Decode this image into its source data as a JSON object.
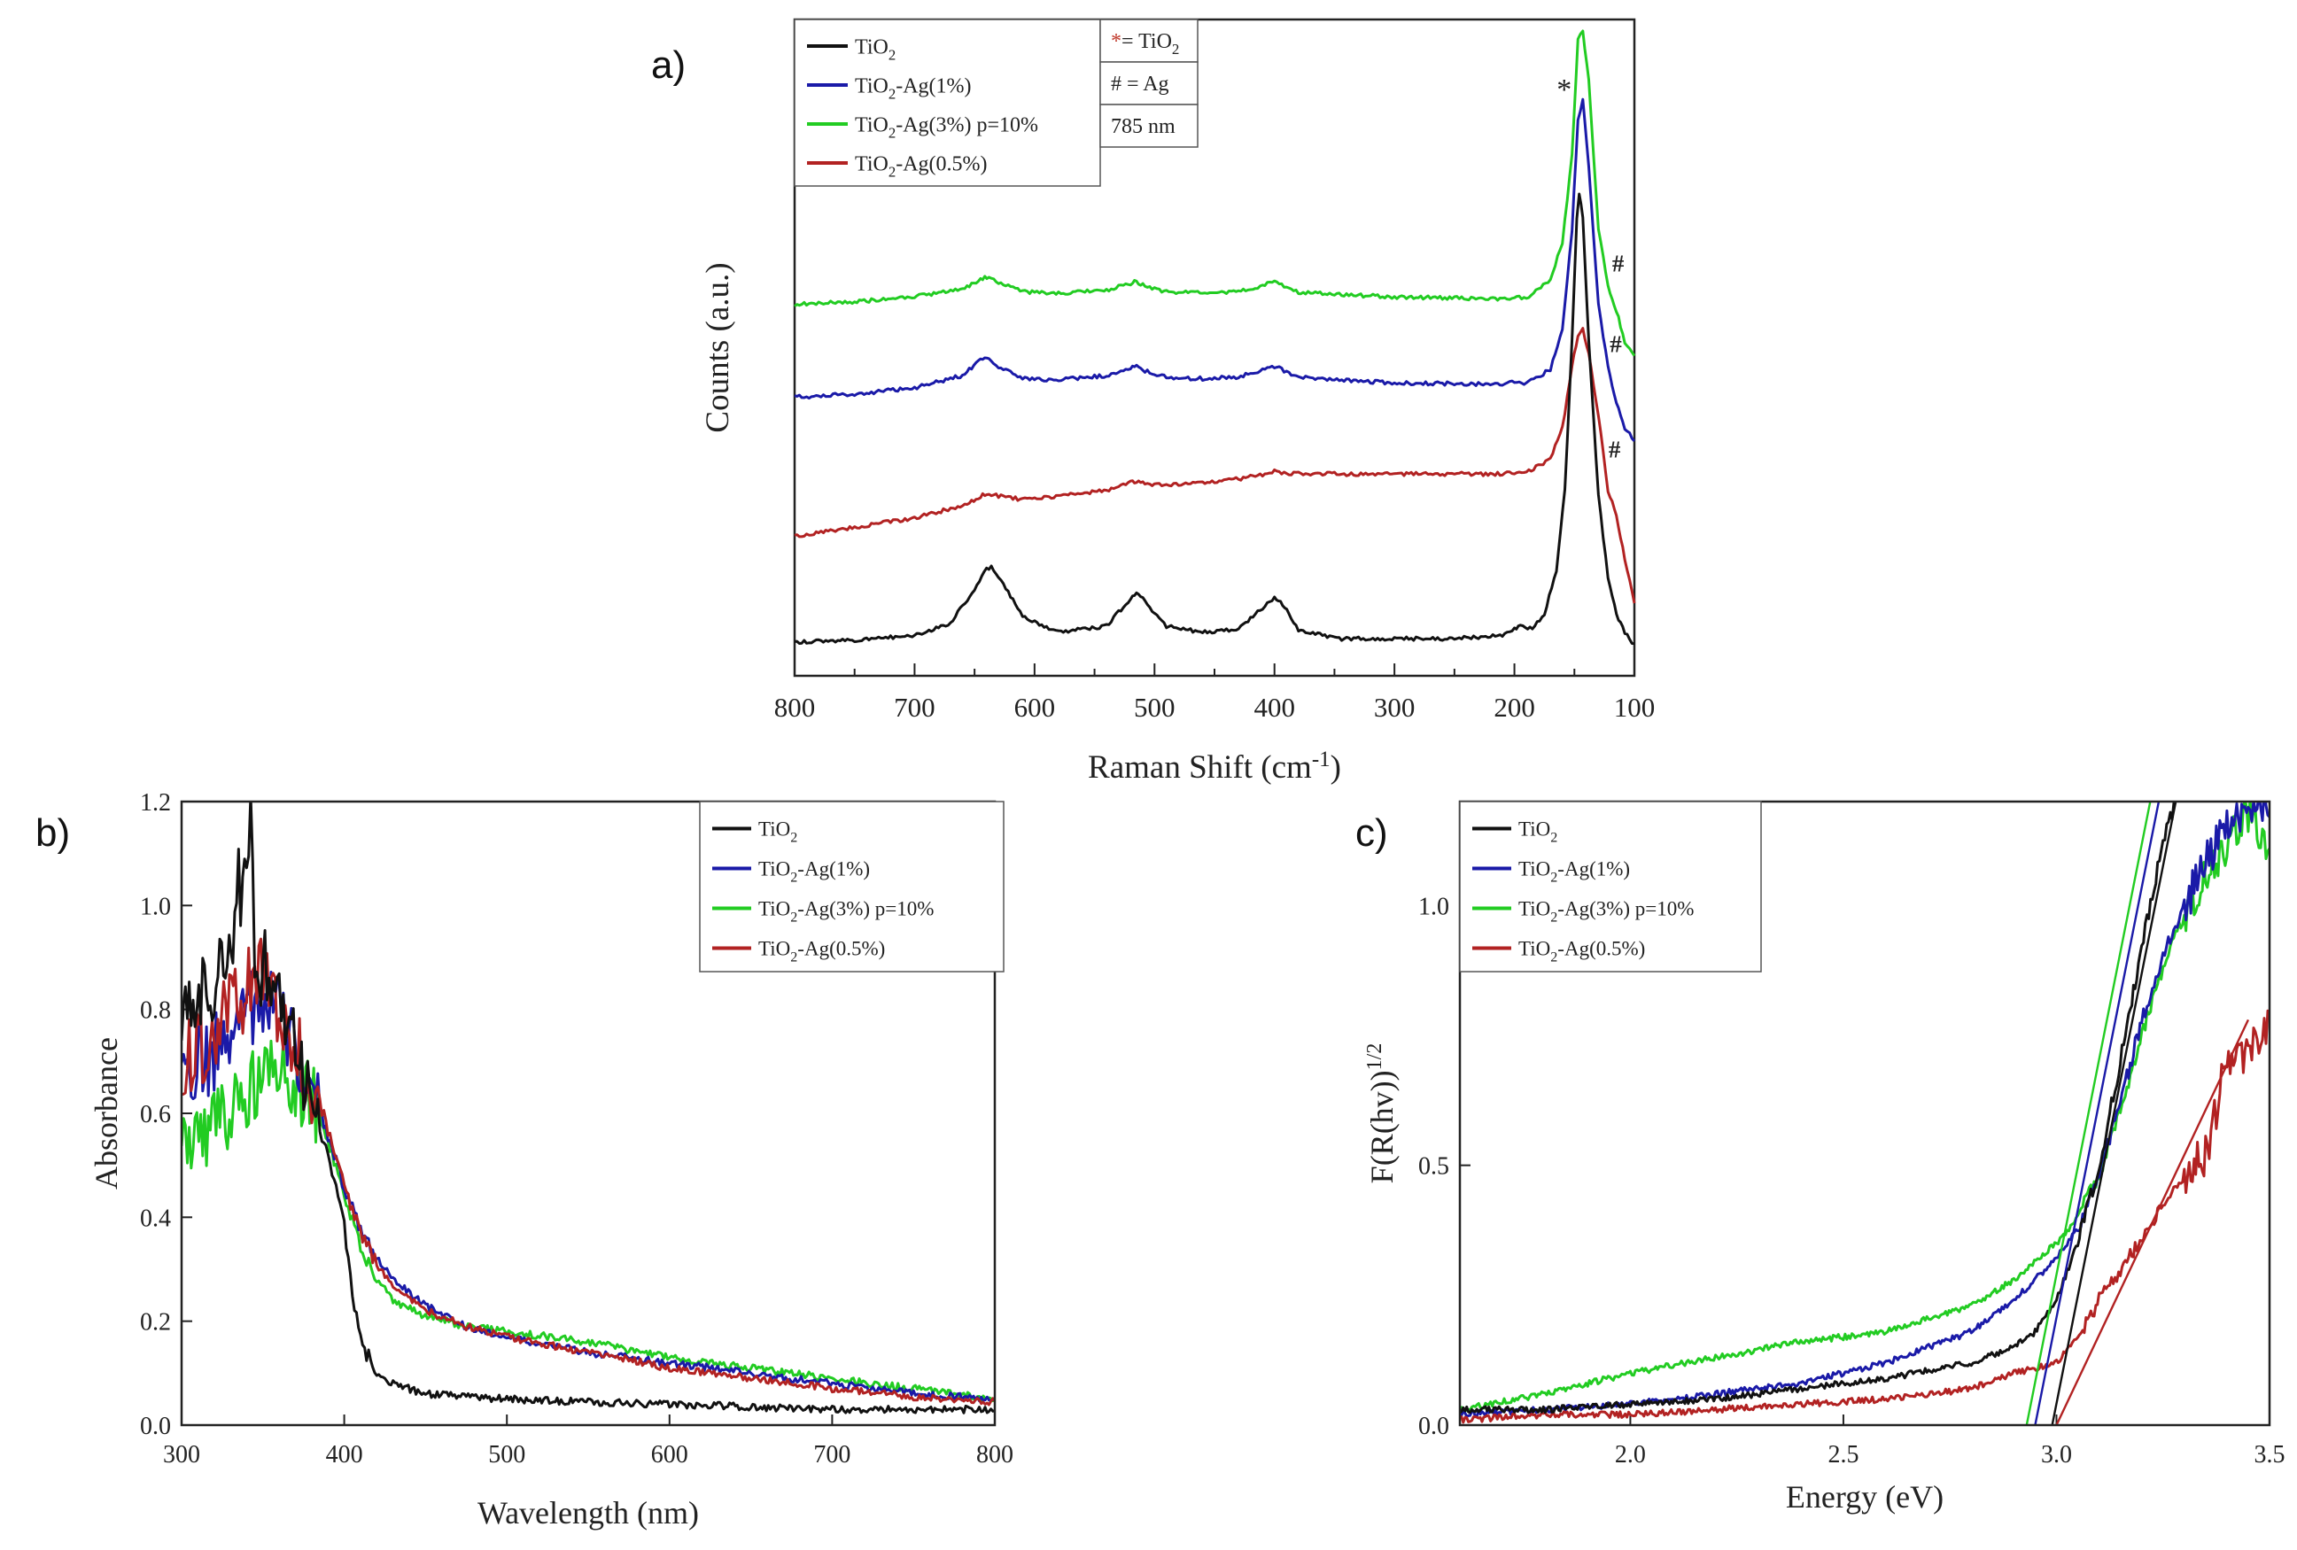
{
  "chart_data": [
    {
      "id": "a",
      "panel_label": "a)",
      "type": "line",
      "xlabel": "Raman Shift (cm",
      "xlabel_sup": "-1",
      "xlabel_close": ")",
      "ylabel": "Counts (a.u.)",
      "xlim": [
        800,
        100
      ],
      "x_ticks": [
        "800",
        "700",
        "600",
        "500",
        "400",
        "300",
        "200",
        "100"
      ],
      "legend": [
        {
          "base": "TiO",
          "sub": "2",
          "rest": "",
          "color": "#111111"
        },
        {
          "base": "TiO",
          "sub": "2",
          "rest": "-Ag(1%)",
          "color": "#1a1aa8"
        },
        {
          "base": "TiO",
          "sub": "2",
          "rest": "-Ag(3%) p=10%",
          "color": "#22cc22"
        },
        {
          "base": "TiO",
          "sub": "2",
          "rest": "-Ag(0.5%)",
          "color": "#b22222"
        }
      ],
      "annotation_box": [
        {
          "symbol": "*",
          "text": "= TiO",
          "sub": "2"
        },
        {
          "symbol": "#",
          "text": " = Ag",
          "sub": ""
        },
        {
          "symbol": "",
          "text": "785 nm",
          "sub": ""
        }
      ],
      "markers": [
        {
          "symbol": "*",
          "x": 160,
          "series": "TiO2-Ag(3%) p=10%"
        },
        {
          "symbol": "#",
          "x": 115,
          "series": "TiO2-Ag(3%) p=10%"
        },
        {
          "symbol": "#",
          "x": 117,
          "series": "TiO2-Ag(1%)"
        },
        {
          "symbol": "#",
          "x": 118,
          "series": "TiO2-Ag(0.5%)"
        }
      ],
      "series": [
        {
          "name": "TiO2-Ag(3%) p=10%",
          "color": "#22cc22",
          "x": [
            800,
            750,
            700,
            660,
            645,
            638,
            630,
            610,
            580,
            540,
            520,
            515,
            508,
            490,
            460,
            430,
            410,
            400,
            392,
            380,
            350,
            300,
            250,
            210,
            200,
            190,
            170,
            160,
            152,
            147,
            143,
            138,
            130,
            122,
            115,
            108,
            100
          ],
          "y": [
            5.6,
            5.64,
            5.72,
            5.85,
            6.0,
            6.05,
            5.95,
            5.8,
            5.78,
            5.82,
            5.94,
            5.97,
            5.9,
            5.8,
            5.78,
            5.8,
            5.9,
            5.97,
            5.9,
            5.8,
            5.76,
            5.72,
            5.7,
            5.68,
            5.72,
            5.7,
            6.0,
            6.6,
            8.0,
            9.9,
            10.0,
            9.2,
            6.8,
            5.9,
            5.5,
            5.0,
            4.8
          ]
        },
        {
          "name": "TiO2-Ag(1%)",
          "color": "#1a1aa8",
          "x": [
            800,
            750,
            700,
            660,
            645,
            638,
            630,
            610,
            580,
            540,
            520,
            515,
            508,
            490,
            460,
            430,
            410,
            400,
            392,
            380,
            350,
            300,
            250,
            210,
            200,
            190,
            170,
            160,
            152,
            147,
            143,
            138,
            130,
            122,
            115,
            108,
            100
          ],
          "y": [
            4.1,
            4.15,
            4.25,
            4.45,
            4.7,
            4.72,
            4.6,
            4.4,
            4.38,
            4.45,
            4.58,
            4.6,
            4.52,
            4.42,
            4.4,
            4.42,
            4.55,
            4.6,
            4.53,
            4.42,
            4.38,
            4.33,
            4.32,
            4.3,
            4.36,
            4.32,
            4.55,
            5.2,
            6.8,
            8.6,
            8.9,
            7.8,
            5.6,
            4.6,
            4.0,
            3.6,
            3.4
          ]
        },
        {
          "name": "TiO2-Ag(0.5%)",
          "color": "#b22222",
          "x": [
            800,
            750,
            700,
            660,
            645,
            638,
            630,
            610,
            580,
            540,
            520,
            515,
            508,
            490,
            460,
            430,
            410,
            400,
            392,
            380,
            350,
            300,
            250,
            210,
            200,
            190,
            170,
            160,
            152,
            147,
            143,
            138,
            130,
            122,
            115,
            108,
            100
          ],
          "y": [
            1.85,
            2.0,
            2.15,
            2.35,
            2.5,
            2.55,
            2.5,
            2.45,
            2.5,
            2.6,
            2.72,
            2.75,
            2.7,
            2.68,
            2.72,
            2.78,
            2.85,
            2.9,
            2.88,
            2.86,
            2.86,
            2.86,
            2.86,
            2.86,
            2.88,
            2.88,
            3.1,
            3.6,
            4.6,
            5.1,
            5.2,
            4.8,
            3.8,
            2.6,
            2.2,
            1.5,
            0.8
          ]
        },
        {
          "name": "TiO2",
          "color": "#111111",
          "x": [
            800,
            750,
            700,
            670,
            650,
            642,
            636,
            628,
            610,
            580,
            540,
            520,
            515,
            508,
            490,
            460,
            430,
            410,
            400,
            395,
            388,
            380,
            350,
            300,
            250,
            210,
            200,
            195,
            185,
            175,
            165,
            158,
            152,
            148,
            146,
            143,
            138,
            130,
            122,
            115,
            108,
            100
          ],
          "y": [
            0.15,
            0.17,
            0.25,
            0.45,
            1.0,
            1.3,
            1.35,
            1.15,
            0.55,
            0.3,
            0.4,
            0.85,
            0.95,
            0.8,
            0.4,
            0.3,
            0.35,
            0.7,
            0.85,
            0.8,
            0.6,
            0.35,
            0.2,
            0.2,
            0.2,
            0.25,
            0.35,
            0.4,
            0.35,
            0.6,
            1.3,
            2.6,
            5.0,
            7.0,
            7.4,
            7.0,
            5.0,
            2.5,
            1.2,
            0.6,
            0.3,
            0.1
          ]
        }
      ]
    },
    {
      "id": "b",
      "panel_label": "b)",
      "type": "line",
      "xlabel": "Wavelength (nm)",
      "ylabel": "Absorbance",
      "xlim": [
        300,
        800
      ],
      "ylim": [
        0.0,
        1.2
      ],
      "x_ticks": [
        "300",
        "400",
        "500",
        "600",
        "700",
        "800"
      ],
      "y_ticks": [
        "0.0",
        "0.2",
        "0.4",
        "0.6",
        "0.8",
        "1.0",
        "1.2"
      ],
      "legend": [
        {
          "base": "TiO",
          "sub": "2",
          "rest": "",
          "color": "#111111"
        },
        {
          "base": "TiO",
          "sub": "2",
          "rest": "-Ag(1%)",
          "color": "#1a1aa8"
        },
        {
          "base": "TiO",
          "sub": "2",
          "rest": "-Ag(3%) p=10%",
          "color": "#22cc22"
        },
        {
          "base": "TiO",
          "sub": "2",
          "rest": "-Ag(0.5%)",
          "color": "#b22222"
        }
      ],
      "series": [
        {
          "name": "TiO2",
          "color": "#111111",
          "x": [
            300,
            320,
            335,
            340,
            345,
            350,
            360,
            370,
            380,
            390,
            400,
            405,
            410,
            420,
            430,
            450,
            500,
            550,
            600,
            650,
            700,
            750,
            800
          ],
          "y": [
            0.82,
            0.86,
            0.95,
            1.15,
            0.98,
            0.9,
            0.82,
            0.72,
            0.62,
            0.52,
            0.38,
            0.25,
            0.16,
            0.1,
            0.08,
            0.06,
            0.05,
            0.045,
            0.04,
            0.035,
            0.03,
            0.03,
            0.03
          ]
        },
        {
          "name": "TiO2-Ag(1%)",
          "color": "#1a1aa8",
          "x": [
            300,
            320,
            340,
            350,
            360,
            370,
            380,
            390,
            400,
            410,
            420,
            430,
            450,
            475,
            500,
            550,
            600,
            650,
            700,
            750,
            800
          ],
          "y": [
            0.68,
            0.72,
            0.8,
            0.82,
            0.78,
            0.72,
            0.64,
            0.56,
            0.46,
            0.38,
            0.32,
            0.28,
            0.23,
            0.19,
            0.17,
            0.14,
            0.12,
            0.1,
            0.08,
            0.06,
            0.05
          ]
        },
        {
          "name": "TiO2-Ag(3%) p=10%",
          "color": "#22cc22",
          "x": [
            300,
            320,
            340,
            350,
            360,
            370,
            380,
            390,
            400,
            410,
            420,
            430,
            450,
            475,
            500,
            550,
            600,
            650,
            700,
            750,
            800
          ],
          "y": [
            0.58,
            0.56,
            0.64,
            0.66,
            0.68,
            0.66,
            0.62,
            0.55,
            0.44,
            0.34,
            0.28,
            0.24,
            0.21,
            0.19,
            0.18,
            0.16,
            0.13,
            0.11,
            0.09,
            0.07,
            0.05
          ]
        },
        {
          "name": "TiO2-Ag(0.5%)",
          "color": "#b22222",
          "x": [
            300,
            320,
            340,
            350,
            360,
            370,
            380,
            390,
            400,
            410,
            420,
            430,
            450,
            475,
            500,
            550,
            600,
            650,
            700,
            750,
            800
          ],
          "y": [
            0.7,
            0.76,
            0.84,
            0.86,
            0.8,
            0.74,
            0.66,
            0.57,
            0.46,
            0.37,
            0.31,
            0.27,
            0.22,
            0.19,
            0.17,
            0.14,
            0.11,
            0.09,
            0.07,
            0.055,
            0.045
          ]
        }
      ]
    },
    {
      "id": "c",
      "panel_label": "c)",
      "type": "line",
      "xlabel": "Energy (eV)",
      "ylabel": "F(R(hv))",
      "ylabel_sup": "1/2",
      "xlim": [
        1.6,
        3.5
      ],
      "ylim": [
        0.0,
        1.2
      ],
      "x_ticks": [
        "2.0",
        "2.5",
        "3.0",
        "3.5"
      ],
      "x_tick_values": [
        2.0,
        2.5,
        3.0,
        3.5
      ],
      "y_ticks": [
        "0.0",
        "0.5",
        "1.0"
      ],
      "y_tick_values": [
        0.0,
        0.5,
        1.0
      ],
      "legend": [
        {
          "base": "TiO",
          "sub": "2",
          "rest": "",
          "color": "#111111"
        },
        {
          "base": "TiO",
          "sub": "2",
          "rest": "-Ag(1%)",
          "color": "#1a1aa8"
        },
        {
          "base": "TiO",
          "sub": "2",
          "rest": "-Ag(3%) p=10%",
          "color": "#22cc22"
        },
        {
          "base": "TiO",
          "sub": "2",
          "rest": "-Ag(0.5%)",
          "color": "#b22222"
        }
      ],
      "series": [
        {
          "name": "TiO2",
          "color": "#111111",
          "x": [
            1.6,
            1.8,
            2.0,
            2.2,
            2.4,
            2.6,
            2.8,
            2.9,
            2.95,
            3.0,
            3.05,
            3.1,
            3.15,
            3.2,
            3.25,
            3.28
          ],
          "y": [
            0.03,
            0.03,
            0.04,
            0.05,
            0.07,
            0.09,
            0.12,
            0.15,
            0.18,
            0.24,
            0.35,
            0.5,
            0.7,
            0.92,
            1.12,
            1.2
          ]
        },
        {
          "name": "TiO2-Ag(1%)",
          "color": "#1a1aa8",
          "x": [
            1.6,
            1.8,
            2.0,
            2.2,
            2.4,
            2.6,
            2.8,
            2.9,
            3.0,
            3.05,
            3.1,
            3.15,
            3.2,
            3.25,
            3.3,
            3.35,
            3.4,
            3.45,
            3.5
          ],
          "y": [
            0.02,
            0.03,
            0.04,
            0.06,
            0.08,
            0.12,
            0.18,
            0.24,
            0.32,
            0.38,
            0.48,
            0.62,
            0.78,
            0.9,
            1.0,
            1.08,
            1.15,
            1.2,
            1.2
          ]
        },
        {
          "name": "TiO2-Ag(3%) p=10%",
          "color": "#22cc22",
          "x": [
            1.6,
            1.8,
            2.0,
            2.2,
            2.4,
            2.6,
            2.8,
            2.9,
            3.0,
            3.05,
            3.1,
            3.15,
            3.2,
            3.25,
            3.3,
            3.35,
            3.4,
            3.45,
            3.5
          ],
          "y": [
            0.03,
            0.06,
            0.1,
            0.13,
            0.16,
            0.18,
            0.23,
            0.28,
            0.35,
            0.4,
            0.48,
            0.6,
            0.75,
            0.88,
            0.98,
            1.05,
            1.12,
            1.18,
            1.1
          ]
        },
        {
          "name": "TiO2-Ag(0.5%)",
          "color": "#b22222",
          "x": [
            1.6,
            1.8,
            2.0,
            2.2,
            2.4,
            2.6,
            2.8,
            2.9,
            3.0,
            3.05,
            3.1,
            3.15,
            3.2,
            3.25,
            3.3,
            3.35,
            3.4,
            3.45,
            3.5
          ],
          "y": [
            0.01,
            0.02,
            0.02,
            0.03,
            0.04,
            0.05,
            0.07,
            0.1,
            0.12,
            0.17,
            0.24,
            0.3,
            0.36,
            0.42,
            0.48,
            0.52,
            0.7,
            0.72,
            0.78
          ]
        }
      ],
      "fit_lines": [
        {
          "color": "#111111",
          "x": [
            2.99,
            3.28
          ],
          "y": [
            0.0,
            1.2
          ]
        },
        {
          "color": "#1a1aa8",
          "x": [
            2.95,
            3.24
          ],
          "y": [
            0.0,
            1.2
          ]
        },
        {
          "color": "#22cc22",
          "x": [
            2.93,
            3.22
          ],
          "y": [
            0.0,
            1.2
          ]
        },
        {
          "color": "#b22222",
          "x": [
            3.0,
            3.45
          ],
          "y": [
            0.0,
            0.78
          ]
        }
      ]
    }
  ]
}
